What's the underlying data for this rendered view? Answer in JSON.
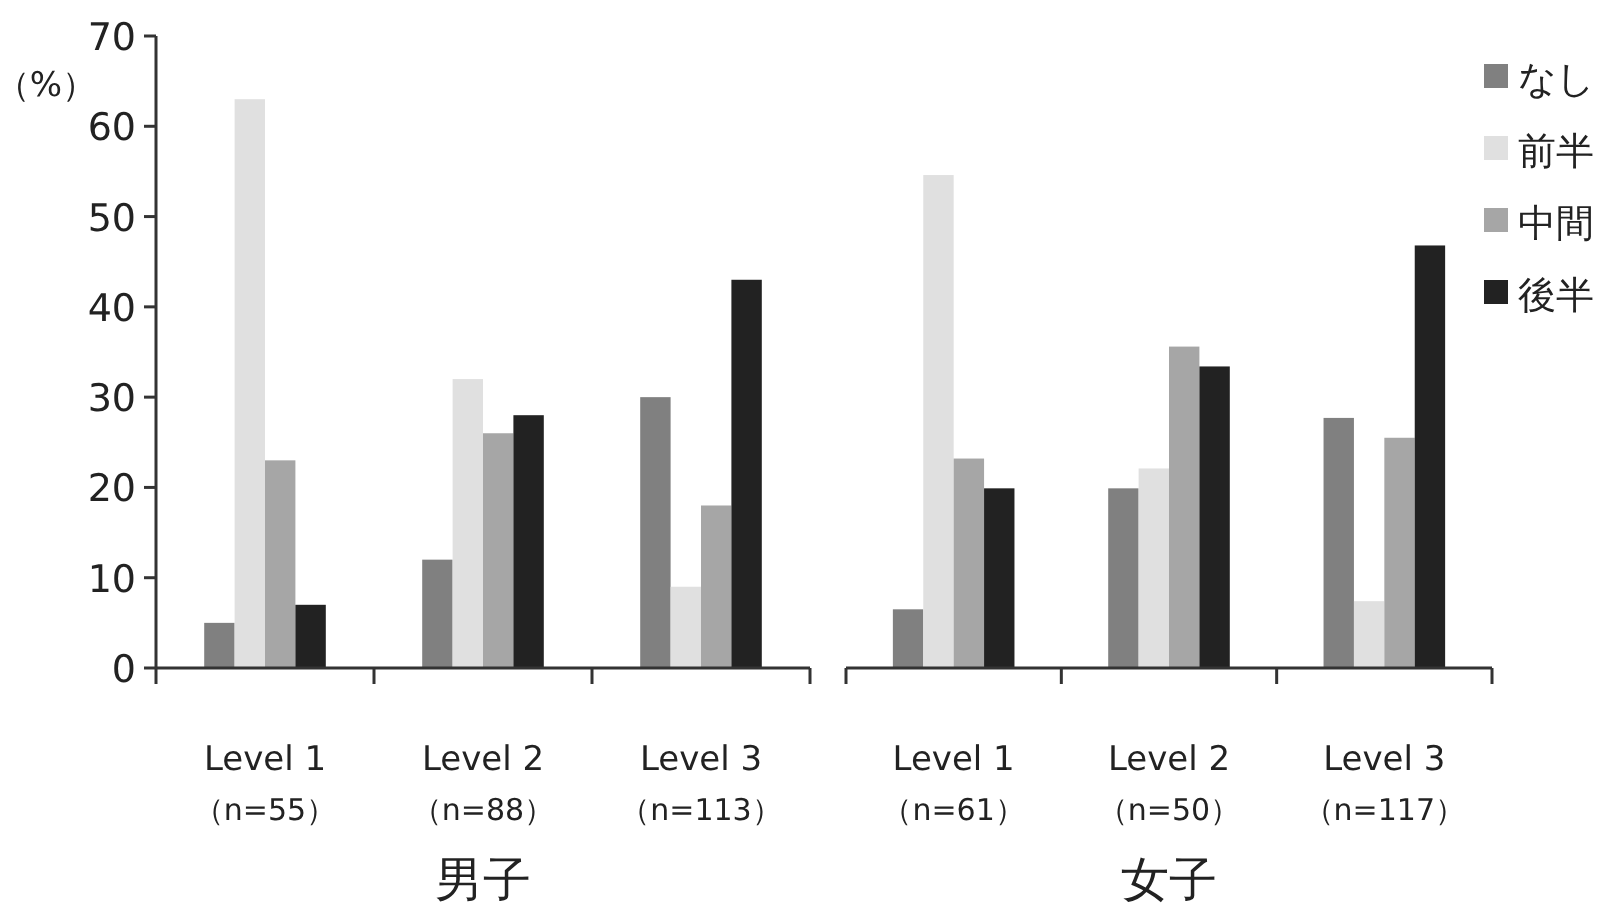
{
  "chart_data": [
    {
      "type": "bar",
      "xlabel": "男子",
      "ylabel": "（%）",
      "categories": [
        "Level 1\n（n=55）",
        "Level 2\n（n=88）",
        "Level 3\n（n=113）"
      ],
      "ylim": [
        0,
        70
      ],
      "yticks": [
        0,
        10,
        20,
        30,
        40,
        50,
        60,
        70
      ],
      "grid": false,
      "legend": false,
      "series": [
        {
          "color": "#808080",
          "values": [
            5,
            12,
            30
          ]
        },
        {
          "color": "#e0e0e0",
          "values": [
            63,
            32,
            9
          ]
        },
        {
          "color": "#a6a6a6",
          "values": [
            23,
            26,
            18
          ]
        },
        {
          "color": "#222222",
          "values": [
            7,
            28,
            43
          ]
        }
      ]
    },
    {
      "type": "bar",
      "xlabel": "女子",
      "categories": [
        "Level 1\n（n=61）",
        "Level 2\n（n=50）",
        "Level 3\n（n=117）"
      ],
      "ylim": [
        0,
        70
      ],
      "tick_labels": "x",
      "grid": false,
      "legend": "right",
      "series": [
        {
          "name": "なし",
          "color": "#808080",
          "values": [
            6.5,
            19.9,
            27.7
          ]
        },
        {
          "name": "前半",
          "color": "#e0e0e0",
          "values": [
            54.6,
            22.1,
            7.4
          ]
        },
        {
          "name": "中間",
          "color": "#a6a6a6",
          "values": [
            23.2,
            35.6,
            25.5
          ]
        },
        {
          "name": "後半",
          "color": "#222222",
          "values": [
            19.9,
            33.4,
            46.8
          ]
        }
      ]
    }
  ]
}
